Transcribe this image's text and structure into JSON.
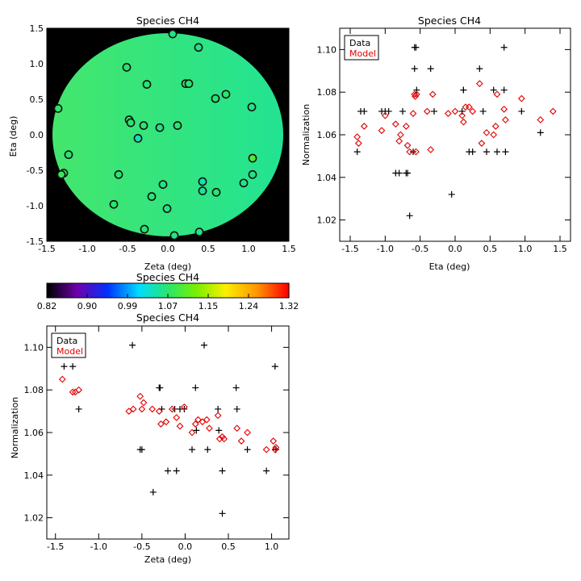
{
  "colors": {
    "background": "#ffffff",
    "black": "#000000",
    "model": "#e00000",
    "field": "#2ee67a",
    "marker_edge": "#111111"
  },
  "colorbar": {
    "title": "Species CH4",
    "ticks": [
      "0.82",
      "0.90",
      "0.99",
      "1.07",
      "1.15",
      "1.24",
      "1.32"
    ],
    "range": [
      0.82,
      1.32
    ],
    "colormap": "rainbow"
  },
  "chart_data": [
    {
      "type": "heatmap",
      "title": "Species CH4",
      "xlabel": "Zeta (deg)",
      "ylabel": "Eta (deg)",
      "xlim": [
        -1.5,
        1.5
      ],
      "ylim": [
        -1.5,
        1.5
      ],
      "xticks": [
        "-1.5",
        "-1.0",
        "-0.5",
        "0.0",
        "0.5",
        "1.0",
        "1.5"
      ],
      "yticks": [
        "-1.5",
        "-1.0",
        "-0.5",
        "0.0",
        "0.5",
        "1.0",
        "1.5"
      ],
      "field_value_range": [
        1.06,
        1.07
      ],
      "aperture_radius_deg": 1.43,
      "points": [
        {
          "x": 0.06,
          "y": 1.42,
          "v": 1.06
        },
        {
          "x": -0.51,
          "y": 0.95,
          "v": 1.07
        },
        {
          "x": 0.38,
          "y": 1.23,
          "v": 1.06
        },
        {
          "x": -1.36,
          "y": 0.37,
          "v": 1.07
        },
        {
          "x": -0.26,
          "y": 0.71,
          "v": 1.07
        },
        {
          "x": 0.22,
          "y": 0.72,
          "v": 1.07
        },
        {
          "x": 0.26,
          "y": 0.72,
          "v": 1.07
        },
        {
          "x": 0.72,
          "y": 0.57,
          "v": 1.07
        },
        {
          "x": 0.59,
          "y": 0.51,
          "v": 1.07
        },
        {
          "x": 1.04,
          "y": 0.39,
          "v": 1.06
        },
        {
          "x": -0.48,
          "y": 0.21,
          "v": 1.07
        },
        {
          "x": -0.46,
          "y": 0.17,
          "v": 1.07
        },
        {
          "x": -0.3,
          "y": 0.13,
          "v": 1.07
        },
        {
          "x": -0.1,
          "y": 0.1,
          "v": 1.06
        },
        {
          "x": 0.12,
          "y": 0.13,
          "v": 1.07
        },
        {
          "x": -0.37,
          "y": -0.05,
          "v": 1.04
        },
        {
          "x": -1.23,
          "y": -0.28,
          "v": 1.07
        },
        {
          "x": -1.29,
          "y": -0.54,
          "v": 1.08
        },
        {
          "x": -1.32,
          "y": -0.56,
          "v": 1.08
        },
        {
          "x": 1.05,
          "y": -0.33,
          "v": 1.1
        },
        {
          "x": -0.61,
          "y": -0.56,
          "v": 1.07
        },
        {
          "x": 1.05,
          "y": -0.56,
          "v": 1.06
        },
        {
          "x": 0.43,
          "y": -0.66,
          "v": 1.04
        },
        {
          "x": -0.06,
          "y": -0.7,
          "v": 1.06
        },
        {
          "x": 0.43,
          "y": -0.79,
          "v": 1.05
        },
        {
          "x": 0.6,
          "y": -0.81,
          "v": 1.07
        },
        {
          "x": 0.94,
          "y": -0.68,
          "v": 1.06
        },
        {
          "x": -0.2,
          "y": -0.87,
          "v": 1.07
        },
        {
          "x": -0.67,
          "y": -0.98,
          "v": 1.07
        },
        {
          "x": -0.01,
          "y": -1.04,
          "v": 1.06
        },
        {
          "x": -0.29,
          "y": -1.33,
          "v": 1.07
        },
        {
          "x": 0.39,
          "y": -1.37,
          "v": 1.06
        },
        {
          "x": 0.08,
          "y": -1.42,
          "v": 1.06
        }
      ]
    },
    {
      "type": "scatter",
      "title": "Species CH4",
      "xlabel": "Eta (deg)",
      "ylabel": "Normalization",
      "xlim": [
        -1.65,
        1.65
      ],
      "ylim": [
        1.01,
        1.11
      ],
      "xticks": [
        "-1.5",
        "-1.0",
        "-0.5",
        "0.0",
        "0.5",
        "1.0",
        "1.5"
      ],
      "yticks": [
        "1.02",
        "1.04",
        "1.06",
        "1.08",
        "1.10"
      ],
      "legend": {
        "position": "top-left",
        "entries": [
          "Data",
          "Model"
        ]
      },
      "series": [
        {
          "name": "Data",
          "marker": "plus",
          "color": "#000000",
          "x": [
            -1.4,
            -1.35,
            -1.3,
            -1.05,
            -1.0,
            -0.95,
            -0.85,
            -0.8,
            -0.75,
            -0.7,
            -0.68,
            -0.65,
            -0.6,
            -0.58,
            -0.56,
            -0.58,
            -0.55,
            -0.35,
            -0.3,
            -0.05,
            0.1,
            0.12,
            0.12,
            0.2,
            0.25,
            0.35,
            0.4,
            0.45,
            0.55,
            0.6,
            0.7,
            0.7,
            0.72,
            0.95,
            1.22
          ],
          "y": [
            1.052,
            1.071,
            1.071,
            1.071,
            1.071,
            1.071,
            1.042,
            1.042,
            1.071,
            1.042,
            1.042,
            1.022,
            1.052,
            1.101,
            1.101,
            1.091,
            1.081,
            1.091,
            1.071,
            1.032,
            1.071,
            1.081,
            1.081,
            1.052,
            1.052,
            1.091,
            1.071,
            1.052,
            1.081,
            1.052,
            1.101,
            1.081,
            1.052,
            1.071,
            1.061
          ]
        },
        {
          "name": "Model",
          "marker": "diamond",
          "color": "#e00000",
          "x": [
            -1.4,
            -1.38,
            -1.3,
            -1.05,
            -1.0,
            -0.85,
            -0.8,
            -0.78,
            -0.7,
            -0.68,
            -0.65,
            -0.6,
            -0.58,
            -0.57,
            -0.55,
            -0.56,
            -0.4,
            -0.35,
            -0.32,
            -0.1,
            0.0,
            0.1,
            0.12,
            0.15,
            0.2,
            0.25,
            0.35,
            0.38,
            0.45,
            0.55,
            0.58,
            0.6,
            0.7,
            0.72,
            0.95,
            1.22,
            1.4
          ],
          "y": [
            1.059,
            1.056,
            1.064,
            1.062,
            1.069,
            1.065,
            1.057,
            1.06,
            1.064,
            1.055,
            1.052,
            1.07,
            1.079,
            1.078,
            1.079,
            1.052,
            1.071,
            1.053,
            1.079,
            1.07,
            1.071,
            1.069,
            1.066,
            1.073,
            1.073,
            1.071,
            1.084,
            1.056,
            1.061,
            1.06,
            1.064,
            1.079,
            1.072,
            1.067,
            1.077,
            1.067,
            1.071
          ]
        }
      ]
    },
    {
      "type": "scatter",
      "title": "Species CH4",
      "xlabel": "Zeta (deg)",
      "ylabel": "Normalization",
      "xlim": [
        -1.6,
        1.2
      ],
      "ylim": [
        1.01,
        1.11
      ],
      "xticks": [
        "-1.5",
        "-1.0",
        "-0.5",
        "0.0",
        "0.5",
        "1.0"
      ],
      "yticks": [
        "1.02",
        "1.04",
        "1.06",
        "1.08",
        "1.10"
      ],
      "legend": {
        "position": "top-left",
        "entries": [
          "Data",
          "Model"
        ]
      },
      "series": [
        {
          "name": "Data",
          "marker": "plus",
          "color": "#000000",
          "x": [
            -1.4,
            -1.3,
            -1.27,
            -1.23,
            -0.61,
            -0.52,
            -0.5,
            -0.37,
            -0.3,
            -0.29,
            -0.27,
            -0.2,
            -0.12,
            -0.1,
            -0.06,
            -0.01,
            0.08,
            0.12,
            0.13,
            0.22,
            0.26,
            0.38,
            0.39,
            0.43,
            0.43,
            0.59,
            0.6,
            0.72,
            0.94,
            1.04,
            1.05,
            1.05
          ],
          "y": [
            1.091,
            1.091,
            1.101,
            1.071,
            1.101,
            1.052,
            1.052,
            1.032,
            1.081,
            1.081,
            1.071,
            1.042,
            1.071,
            1.042,
            1.071,
            1.071,
            1.052,
            1.081,
            1.061,
            1.101,
            1.052,
            1.071,
            1.061,
            1.022,
            1.042,
            1.081,
            1.071,
            1.052,
            1.042,
            1.091,
            1.052,
            1.052
          ]
        },
        {
          "name": "Model",
          "marker": "diamond",
          "color": "#e00000",
          "x": [
            -1.42,
            -1.3,
            -1.27,
            -1.23,
            -0.65,
            -0.6,
            -0.52,
            -0.5,
            -0.48,
            -0.38,
            -0.3,
            -0.28,
            -0.22,
            -0.15,
            -0.1,
            -0.06,
            -0.01,
            0.08,
            0.12,
            0.15,
            0.2,
            0.25,
            0.28,
            0.38,
            0.4,
            0.43,
            0.45,
            0.6,
            0.65,
            0.72,
            0.94,
            1.02,
            1.04,
            1.05
          ],
          "y": [
            1.085,
            1.079,
            1.079,
            1.08,
            1.07,
            1.071,
            1.077,
            1.071,
            1.074,
            1.071,
            1.07,
            1.064,
            1.065,
            1.071,
            1.067,
            1.063,
            1.072,
            1.06,
            1.064,
            1.066,
            1.065,
            1.066,
            1.062,
            1.068,
            1.057,
            1.058,
            1.057,
            1.062,
            1.056,
            1.06,
            1.052,
            1.056,
            1.052,
            1.053
          ]
        }
      ]
    }
  ]
}
